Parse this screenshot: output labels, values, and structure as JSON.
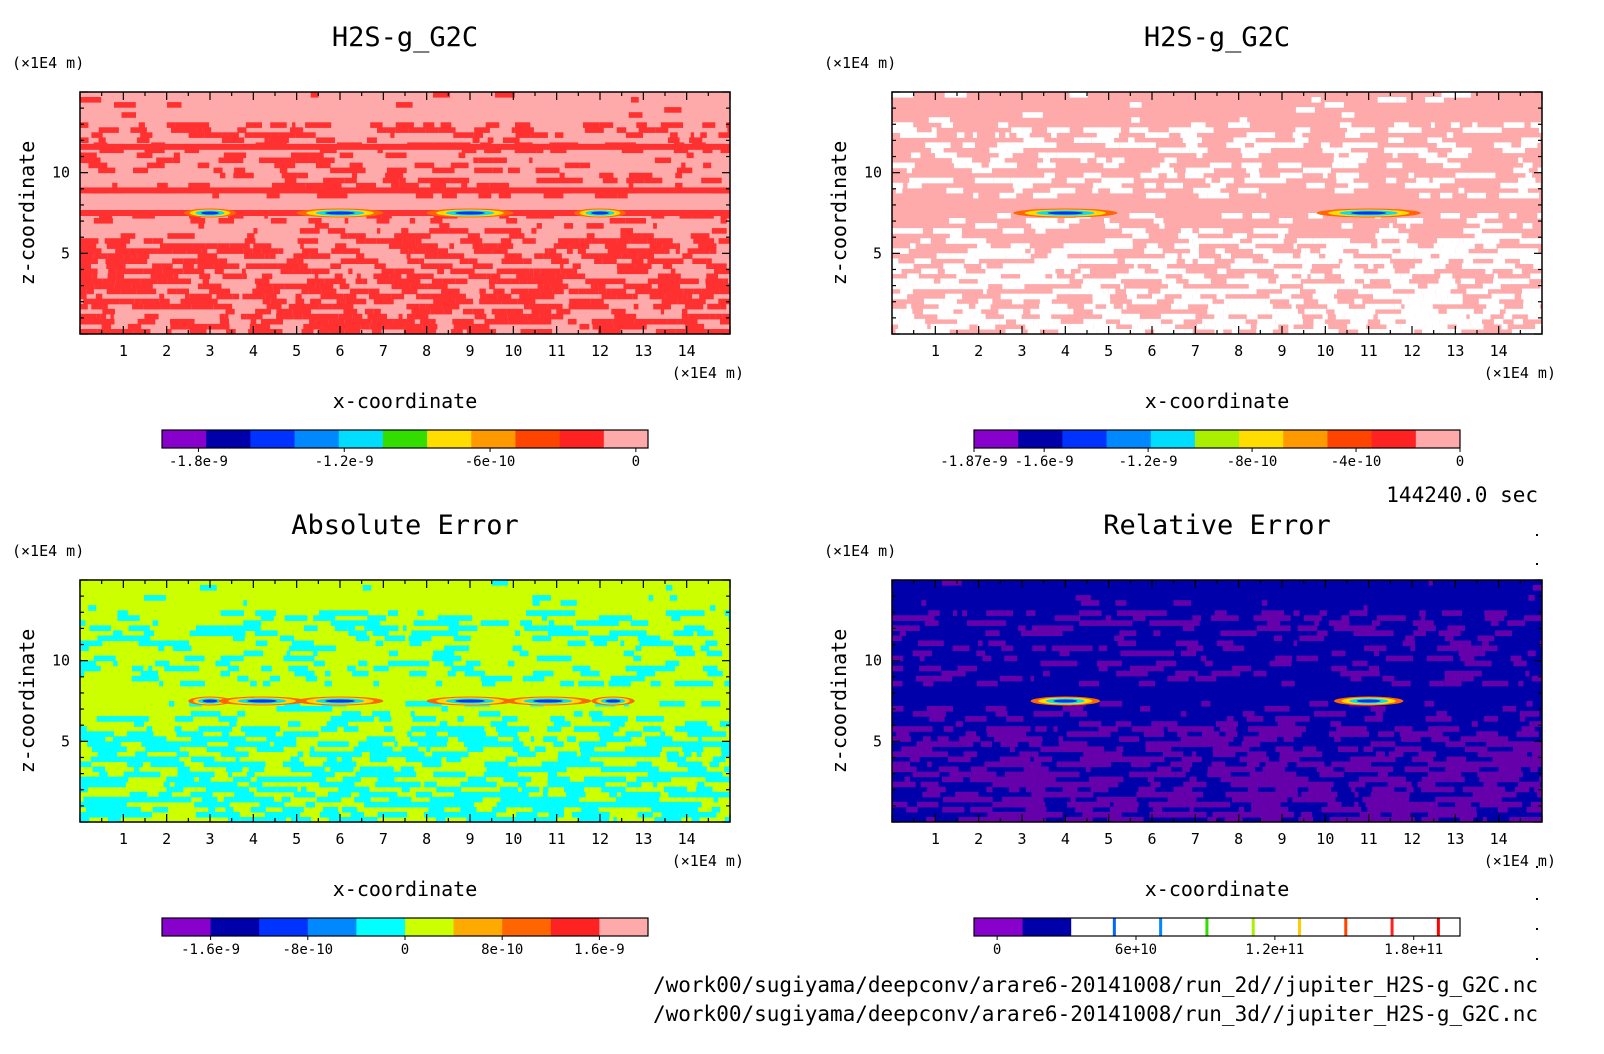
{
  "time_label": "144240.0 sec",
  "file_paths": [
    "/work00/sugiyama/deepconv/arare6-20141008/run_2d//jupiter_H2S-g_G2C.nc",
    "/work00/sugiyama/deepconv/arare6-20141008/run_3d//jupiter_H2S-g_G2C.nc"
  ],
  "chart_data": [
    {
      "type": "heatmap",
      "title": "H2S-g_G2C",
      "xlabel": "x-coordinate",
      "ylabel": "z-coordinate",
      "x_unit": "(×1E4 m)",
      "y_unit": "(×1E4 m)",
      "x_ticks": [
        "1",
        "2",
        "3",
        "4",
        "5",
        "6",
        "7",
        "8",
        "9",
        "10",
        "11",
        "12",
        "13",
        "14"
      ],
      "y_ticks": [
        "5",
        "10"
      ],
      "xlim": [
        0,
        15
      ],
      "ylim": [
        0,
        15
      ],
      "background_color": "#ffaaaa",
      "pattern_color": "#ff3030",
      "features": [
        {
          "x": 3.0,
          "z": 7.5,
          "w": 0.6
        },
        {
          "x": 6.0,
          "z": 7.5,
          "w": 1.0
        },
        {
          "x": 9.0,
          "z": 7.5,
          "w": 1.0
        },
        {
          "x": 12.0,
          "z": 7.5,
          "w": 0.6
        }
      ],
      "colorbar": {
        "colors": [
          "#8800cc",
          "#0000aa",
          "#0033ff",
          "#0088ff",
          "#00ddff",
          "#33dd00",
          "#ffdd00",
          "#ff9900",
          "#ff4400",
          "#ff2222",
          "#ffaaaa"
        ],
        "tick_labels": [
          "-1.8e-9",
          "-1.2e-9",
          "-6e-10",
          "0"
        ],
        "tick_values": [
          -1.8e-09,
          -1.2e-09,
          -6e-10,
          0
        ],
        "range": [
          -1.95e-09,
          5e-11
        ]
      }
    },
    {
      "type": "heatmap",
      "title": "H2S-g_G2C",
      "xlabel": "x-coordinate",
      "ylabel": "z-coordinate",
      "x_unit": "(×1E4 m)",
      "y_unit": "(×1E4 m)",
      "x_ticks": [
        "1",
        "2",
        "3",
        "4",
        "5",
        "6",
        "7",
        "8",
        "9",
        "10",
        "11",
        "12",
        "13",
        "14"
      ],
      "y_ticks": [
        "5",
        "10"
      ],
      "xlim": [
        0,
        15
      ],
      "ylim": [
        0,
        15
      ],
      "background_color": "#ffaaaa",
      "pattern_color": "#ffffff",
      "features": [
        {
          "x": 4.0,
          "z": 7.5,
          "w": 1.2
        },
        {
          "x": 11.0,
          "z": 7.5,
          "w": 1.2
        }
      ],
      "colorbar": {
        "colors": [
          "#8800cc",
          "#0000aa",
          "#0033ff",
          "#0088ff",
          "#00ddff",
          "#aaee00",
          "#ffdd00",
          "#ff9900",
          "#ff4400",
          "#ff2222",
          "#ffaaaa"
        ],
        "tick_labels": [
          "-1.87e-9",
          "-1.6e-9",
          "-1.2e-9",
          "-8e-10",
          "-4e-10",
          "0"
        ],
        "tick_values": [
          -1.87e-09,
          -1.6e-09,
          -1.2e-09,
          -8e-10,
          -4e-10,
          0
        ],
        "range": [
          -1.87e-09,
          0
        ]
      }
    },
    {
      "type": "heatmap",
      "title": "Absolute Error",
      "xlabel": "x-coordinate",
      "ylabel": "z-coordinate",
      "x_unit": "(×1E4 m)",
      "y_unit": "(×1E4 m)",
      "x_ticks": [
        "1",
        "2",
        "3",
        "4",
        "5",
        "6",
        "7",
        "8",
        "9",
        "10",
        "11",
        "12",
        "13",
        "14"
      ],
      "y_ticks": [
        "5",
        "10"
      ],
      "xlim": [
        0,
        15
      ],
      "ylim": [
        0,
        15
      ],
      "background_color": "#ccff00",
      "pattern_color": "#00ffff",
      "features": [
        {
          "x": 3.0,
          "z": 7.5,
          "w": 0.5
        },
        {
          "x": 4.2,
          "z": 7.5,
          "w": 1.0
        },
        {
          "x": 6.0,
          "z": 7.5,
          "w": 1.0
        },
        {
          "x": 9.0,
          "z": 7.5,
          "w": 1.0
        },
        {
          "x": 10.8,
          "z": 7.5,
          "w": 1.0
        },
        {
          "x": 12.3,
          "z": 7.5,
          "w": 0.5
        }
      ],
      "colorbar": {
        "colors": [
          "#8800cc",
          "#0000aa",
          "#0033ff",
          "#0088ff",
          "#00ffff",
          "#ccff00",
          "#ffaa00",
          "#ff6600",
          "#ff2222",
          "#ffaaaa"
        ],
        "tick_labels": [
          "-1.6e-9",
          "-8e-10",
          "0",
          "8e-10",
          "1.6e-9"
        ],
        "tick_values": [
          -1.6e-09,
          -8e-10,
          0,
          8e-10,
          1.6e-09
        ],
        "range": [
          -2e-09,
          2e-09
        ]
      }
    },
    {
      "type": "heatmap",
      "title": "Relative Error",
      "xlabel": "x-coordinate",
      "ylabel": "z-coordinate",
      "x_unit": "(×1E4 m)",
      "y_unit": "(×1E4 m)",
      "x_ticks": [
        "1",
        "2",
        "3",
        "4",
        "5",
        "6",
        "7",
        "8",
        "9",
        "10",
        "11",
        "12",
        "13",
        "14"
      ],
      "y_ticks": [
        "5",
        "10"
      ],
      "xlim": [
        0,
        15
      ],
      "ylim": [
        0,
        15
      ],
      "background_color": "#0000aa",
      "pattern_color": "#6600aa",
      "features": [
        {
          "x": 4.0,
          "z": 7.5,
          "w": 0.8
        },
        {
          "x": 11.0,
          "z": 7.5,
          "w": 0.8
        }
      ],
      "colorbar": {
        "colors": [
          "#8800cc",
          "#0000aa",
          "#ffffff",
          "#ffffff",
          "#ffffff",
          "#ffffff",
          "#ffffff",
          "#ffffff",
          "#ffffff",
          "#ffffff"
        ],
        "stripe_colors": [
          "#0066ff",
          "#0088ff",
          "#33dd00",
          "#aaee00",
          "#ffcc00",
          "#ff4400",
          "#ff2222",
          "#ff0000"
        ],
        "tick_labels": [
          "0",
          "6e+10",
          "1.2e+11",
          "1.8e+11"
        ],
        "tick_values": [
          0,
          60000000000.0,
          120000000000.0,
          180000000000.0
        ],
        "range": [
          -10000000000.0,
          200000000000.0
        ]
      }
    }
  ]
}
